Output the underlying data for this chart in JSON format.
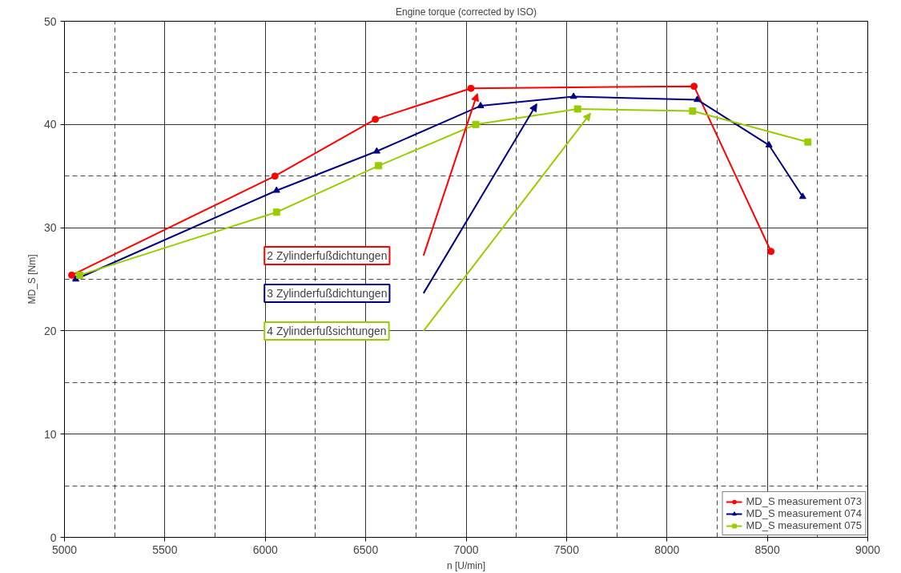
{
  "chart_data": {
    "type": "line",
    "title": "Engine torque (corrected by ISO)",
    "xlabel": "n [U/min]",
    "ylabel": "MD_S [Nm]",
    "xlim": [
      5000,
      9000
    ],
    "xticks": [
      5000,
      5500,
      6000,
      6500,
      7000,
      7500,
      8000,
      8500,
      9000
    ],
    "ylim": [
      0,
      50
    ],
    "yticks": [
      0,
      10,
      20,
      30,
      40,
      50
    ],
    "grid": true,
    "legend": "bottom right",
    "line_style": "solid",
    "series": [
      {
        "name": "MD_S measurement 073",
        "color": "#ff0000",
        "marker": "circle",
        "x": [
          5036,
          6048,
          6548,
          7024,
          8135,
          8518
        ],
        "values": [
          25.4,
          35.0,
          40.5,
          43.5,
          43.7,
          27.7
        ]
      },
      {
        "name": "MD_S measurement 074",
        "color": "#000080",
        "marker": "triangle",
        "x": [
          5056,
          6056,
          6555,
          7072,
          7535,
          8151,
          8508,
          8676
        ],
        "values": [
          25.0,
          33.6,
          37.4,
          41.8,
          42.7,
          42.4,
          38.0,
          33.0
        ]
      },
      {
        "name": "MD_S measurement 075",
        "color": "#99cc00",
        "marker": "square",
        "x": [
          5075,
          6056,
          6564,
          7048,
          7555,
          8128,
          8702
        ],
        "values": [
          25.4,
          31.5,
          36.0,
          40.0,
          41.5,
          41.3,
          38.3
        ]
      }
    ],
    "annotations": [
      "2 Zylinderfußdichtungen",
      "3 Zylinderfußdichtungen",
      "4 Zylinderfußsichtungen"
    ]
  }
}
